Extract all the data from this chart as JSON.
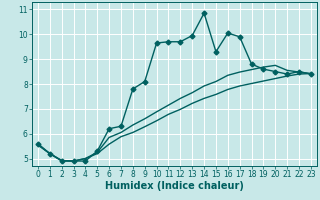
{
  "xlabel": "Humidex (Indice chaleur)",
  "bg_color": "#c8e8e8",
  "grid_color": "#ffffff",
  "line_color": "#006060",
  "xlim": [
    -0.5,
    23.5
  ],
  "ylim": [
    4.7,
    11.3
  ],
  "xticks": [
    0,
    1,
    2,
    3,
    4,
    5,
    6,
    7,
    8,
    9,
    10,
    11,
    12,
    13,
    14,
    15,
    16,
    17,
    18,
    19,
    20,
    21,
    22,
    23
  ],
  "yticks": [
    5,
    6,
    7,
    8,
    9,
    10,
    11
  ],
  "line1_x": [
    0,
    1,
    2,
    3,
    4,
    5,
    6,
    7,
    8,
    9,
    10,
    11,
    12,
    13,
    14,
    15,
    16,
    17,
    18,
    19,
    20,
    21,
    22,
    23
  ],
  "line1_y": [
    5.6,
    5.2,
    4.9,
    4.9,
    4.9,
    5.3,
    6.2,
    6.3,
    7.8,
    8.1,
    9.65,
    9.7,
    9.7,
    9.95,
    10.85,
    9.3,
    10.05,
    9.9,
    8.8,
    8.6,
    8.5,
    8.4,
    8.5,
    8.4
  ],
  "line2_x": [
    0,
    1,
    2,
    3,
    4,
    5,
    6,
    7,
    8,
    9,
    10,
    11,
    12,
    13,
    14,
    15,
    16,
    17,
    18,
    19,
    20,
    21,
    22,
    23
  ],
  "line2_y": [
    5.55,
    5.2,
    4.92,
    4.9,
    5.0,
    5.25,
    5.85,
    6.05,
    6.35,
    6.6,
    6.88,
    7.15,
    7.42,
    7.65,
    7.92,
    8.1,
    8.35,
    8.48,
    8.58,
    8.68,
    8.75,
    8.55,
    8.48,
    8.42
  ],
  "line3_x": [
    0,
    1,
    2,
    3,
    4,
    5,
    6,
    7,
    8,
    9,
    10,
    11,
    12,
    13,
    14,
    15,
    16,
    17,
    18,
    19,
    20,
    21,
    22,
    23
  ],
  "line3_y": [
    5.55,
    5.2,
    4.92,
    4.9,
    5.0,
    5.2,
    5.58,
    5.88,
    6.05,
    6.28,
    6.52,
    6.78,
    6.98,
    7.22,
    7.42,
    7.58,
    7.78,
    7.92,
    8.02,
    8.12,
    8.22,
    8.32,
    8.4,
    8.42
  ]
}
